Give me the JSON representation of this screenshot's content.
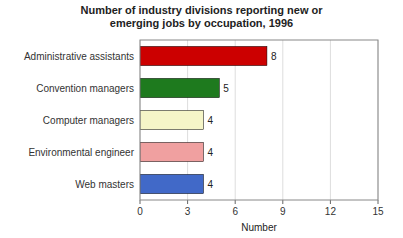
{
  "chart_data": {
    "type": "bar",
    "orientation": "horizontal",
    "title": "Number of industry divisions reporting new or\nemerging jobs by occupation, 1996",
    "categories": [
      "Web masters",
      "Environmental engineer",
      "Computer managers",
      "Convention managers",
      "Administrative assistants"
    ],
    "values": [
      4,
      4,
      4,
      5,
      8
    ],
    "colors": [
      "#4169C8",
      "#F0A0A0",
      "#F5F5C8",
      "#1E7A1E",
      "#CC0000"
    ],
    "xlabel": "Number",
    "xlim": [
      0,
      15
    ],
    "xticks": [
      0,
      3,
      6,
      9,
      12,
      15
    ],
    "grid": true,
    "data_labels": true
  }
}
